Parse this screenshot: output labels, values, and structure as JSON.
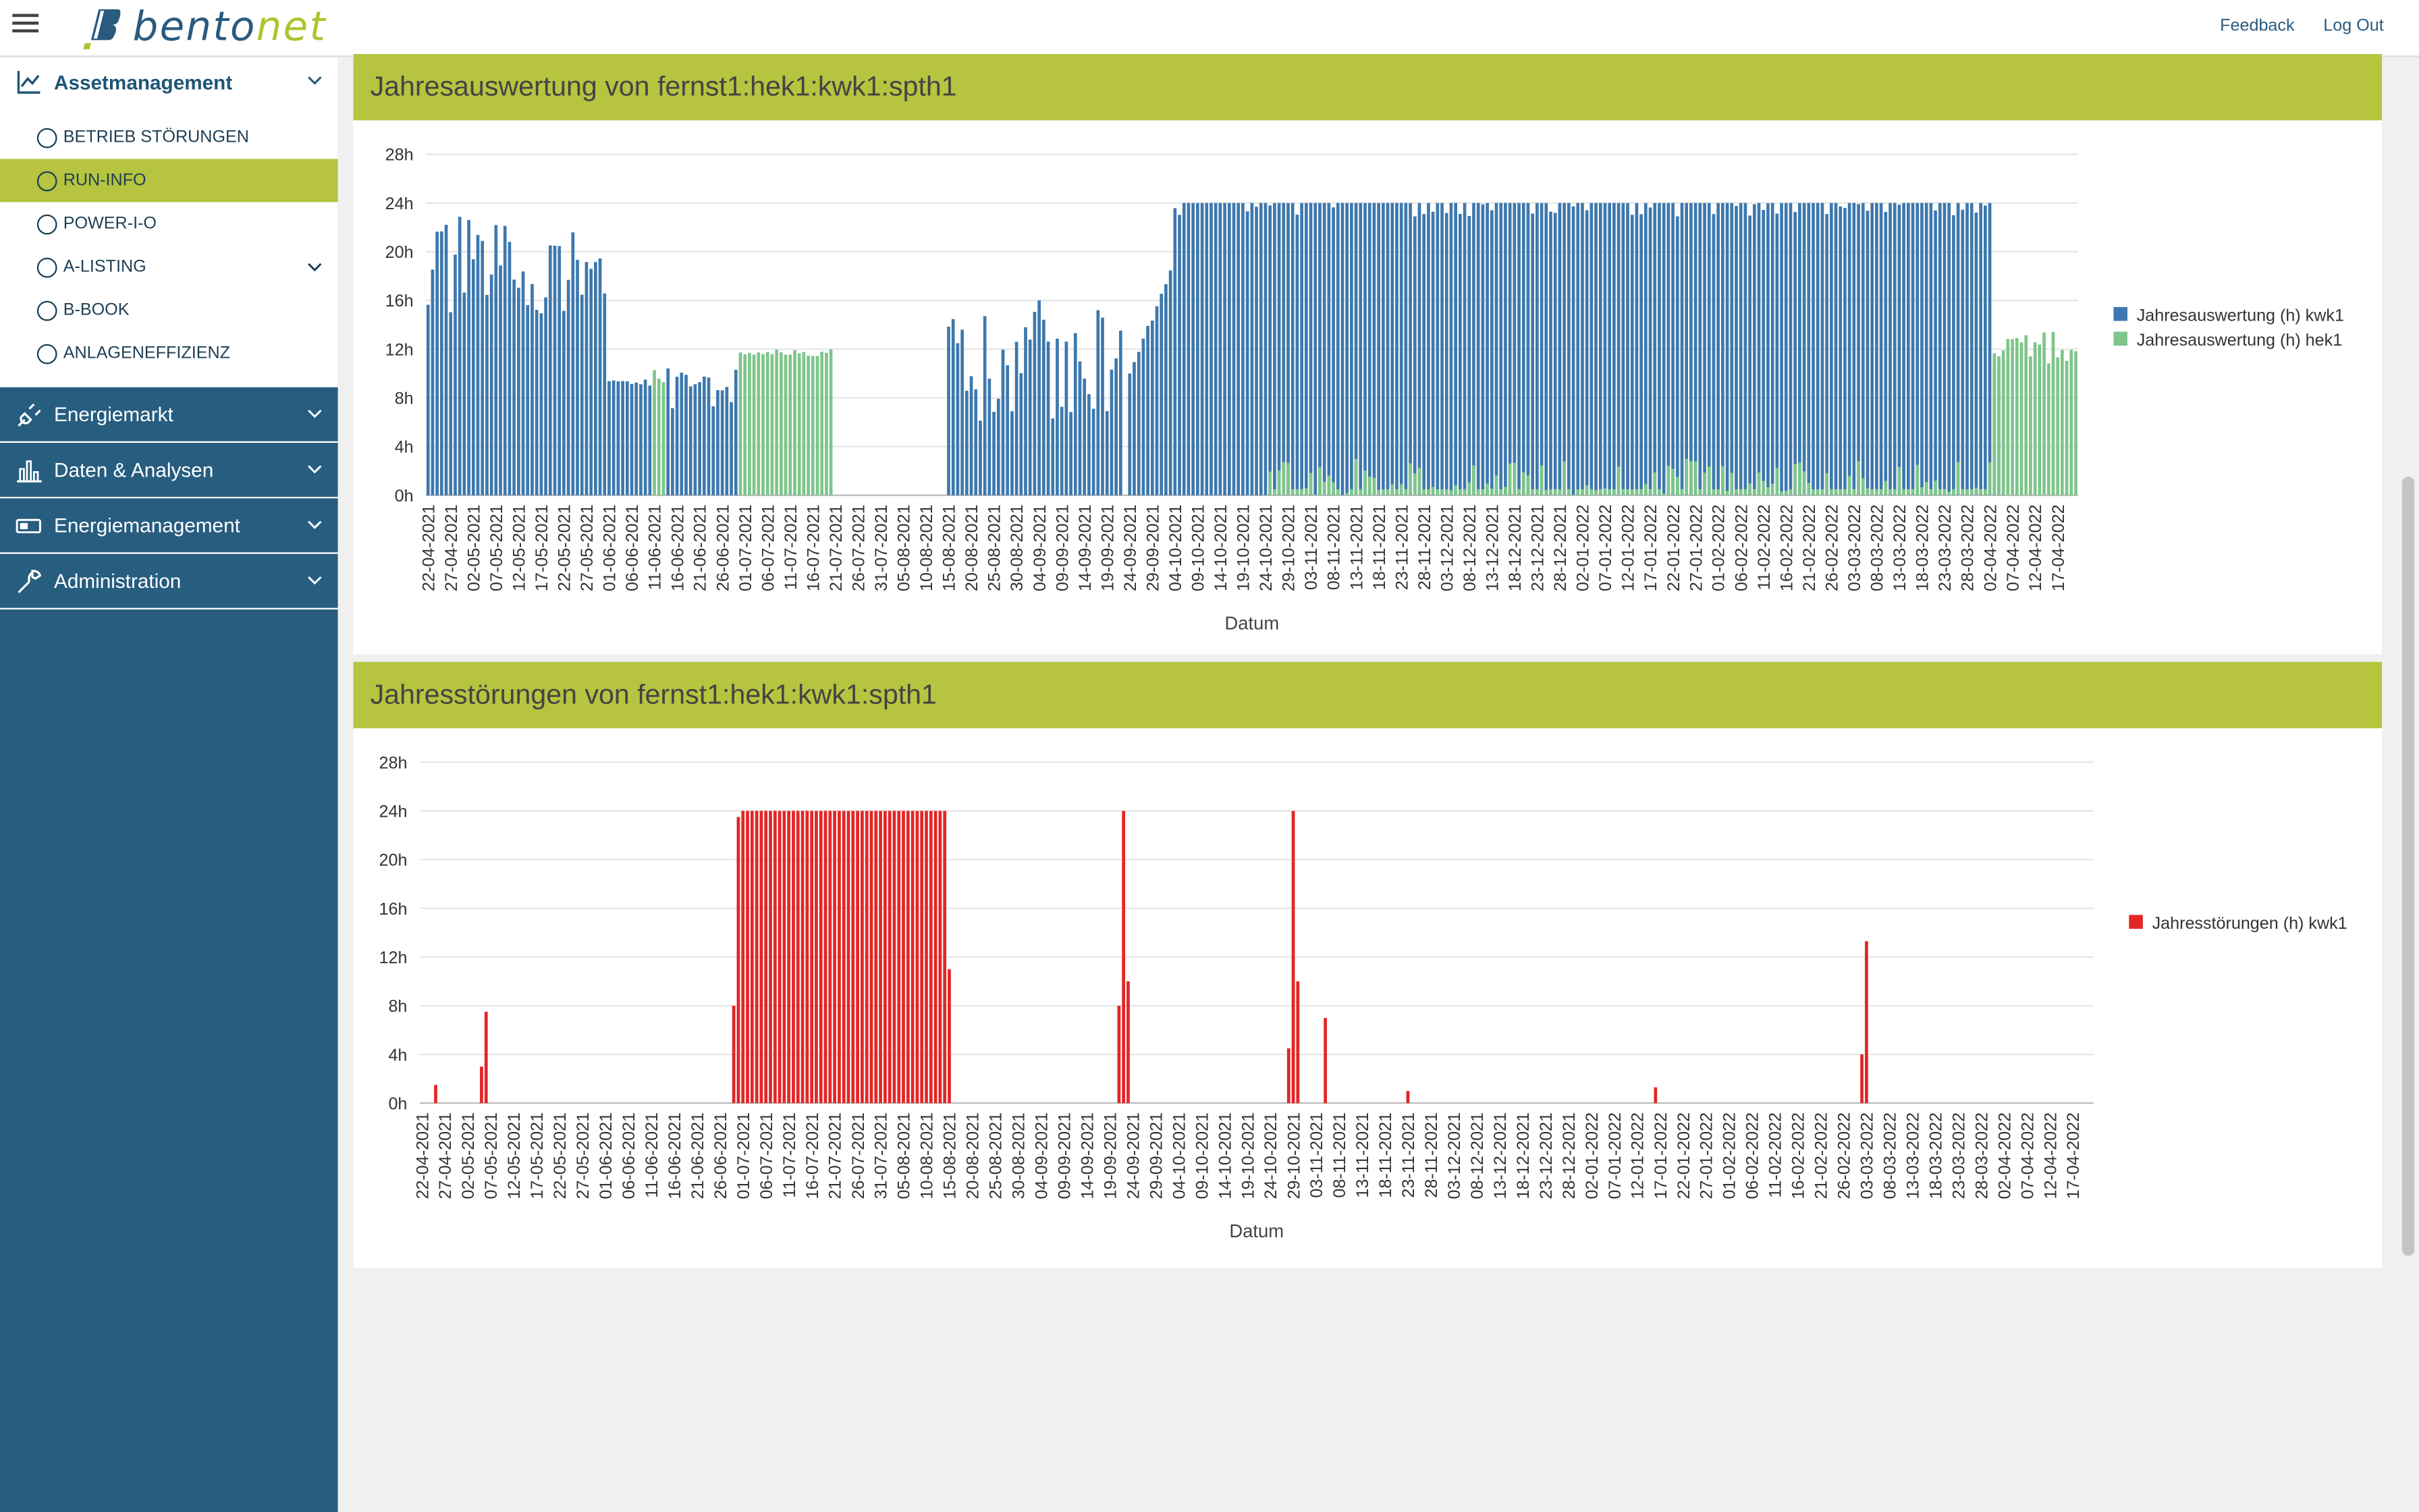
{
  "topbar": {
    "logo_text_1": "bento",
    "logo_text_2": "net",
    "feedback_label": "Feedback",
    "logout_label": "Log Out"
  },
  "sidebar": {
    "assetmanagement": {
      "label": "Assetmanagement",
      "items": [
        {
          "label": "BETRIEB STÖRUNGEN"
        },
        {
          "label": "RUN-INFO"
        },
        {
          "label": "POWER-I-O"
        },
        {
          "label": "A-LISTING"
        },
        {
          "label": "B-BOOK"
        },
        {
          "label": "ANLAGENEFFIZIENZ"
        }
      ]
    },
    "sections": [
      {
        "label": "Energiemarkt",
        "icon": "plug-icon"
      },
      {
        "label": "Daten & Analysen",
        "icon": "bar-chart-icon"
      },
      {
        "label": "Energiemanagement",
        "icon": "battery-icon"
      },
      {
        "label": "Administration",
        "icon": "wrench-icon"
      }
    ]
  },
  "colors": {
    "kwk1": "#3d78ae",
    "hek1": "#7ec58a",
    "stoerung": "#e32626",
    "accent": "#b6c43f",
    "sidebar": "#275d7f"
  },
  "chart_data": [
    {
      "type": "bar",
      "title": "Jahresauswertung von fernst1:hek1:kwk1:spth1",
      "xlabel": "Datum",
      "ylabel": "",
      "y_ticks": [
        "0h",
        "4h",
        "8h",
        "12h",
        "16h",
        "20h",
        "24h",
        "28h"
      ],
      "ylim": [
        0,
        28
      ],
      "x_start": "2021-04-22",
      "x_end": "2022-04-21",
      "x_ticks": [
        "22-04-2021",
        "27-04-2021",
        "02-05-2021",
        "07-05-2021",
        "12-05-2021",
        "17-05-2021",
        "22-05-2021",
        "27-05-2021",
        "01-06-2021",
        "06-06-2021",
        "11-06-2021",
        "16-06-2021",
        "21-06-2021",
        "26-06-2021",
        "01-07-2021",
        "06-07-2021",
        "11-07-2021",
        "16-07-2021",
        "21-07-2021",
        "26-07-2021",
        "31-07-2021",
        "05-08-2021",
        "10-08-2021",
        "15-08-2021",
        "20-08-2021",
        "25-08-2021",
        "30-08-2021",
        "04-09-2021",
        "09-09-2021",
        "14-09-2021",
        "19-09-2021",
        "24-09-2021",
        "29-09-2021",
        "04-10-2021",
        "09-10-2021",
        "14-10-2021",
        "19-10-2021",
        "24-10-2021",
        "29-10-2021",
        "03-11-2021",
        "08-11-2021",
        "13-11-2021",
        "18-11-2021",
        "23-11-2021",
        "28-11-2021",
        "03-12-2021",
        "08-12-2021",
        "13-12-2021",
        "18-12-2021",
        "23-12-2021",
        "28-12-2021",
        "02-01-2022",
        "07-01-2022",
        "12-01-2022",
        "17-01-2022",
        "22-01-2022",
        "27-01-2022",
        "01-02-2022",
        "06-02-2022",
        "11-02-2022",
        "16-02-2022",
        "21-02-2022",
        "26-02-2022",
        "03-03-2022",
        "08-03-2022",
        "13-03-2022",
        "18-03-2022",
        "23-03-2022",
        "28-03-2022",
        "02-04-2022",
        "07-04-2022",
        "12-04-2022",
        "17-04-2022"
      ],
      "legend_position": "right",
      "series": [
        {
          "name": "Jahresauswertung (h) kwk1",
          "color": "#3d78ae",
          "segments": [
            {
              "from": "2021-04-22",
              "to": "2021-05-31",
              "profile": "mixed",
              "min": 14,
              "max": 23
            },
            {
              "from": "2021-06-01",
              "to": "2021-06-10",
              "profile": "flat",
              "min": 8.5,
              "max": 9.5
            },
            {
              "from": "2021-06-14",
              "to": "2021-06-29",
              "profile": "mixed",
              "min": 7,
              "max": 10.5
            },
            {
              "from": "2021-08-15",
              "to": "2021-09-22",
              "profile": "mixed",
              "min": 6,
              "max": 16
            },
            {
              "from": "2021-09-24",
              "to": "2021-10-03",
              "profile": "rising",
              "min": 10,
              "max": 19
            },
            {
              "from": "2021-10-04",
              "to": "2022-04-02",
              "profile": "high",
              "min": 19,
              "max": 24
            },
            {
              "from": "2022-04-03",
              "to": "2022-04-05",
              "profile": "flat",
              "min": 8,
              "max": 12
            }
          ]
        },
        {
          "name": "Jahresauswertung (h) hek1",
          "color": "#7ec58a",
          "segments": [
            {
              "from": "2021-06-11",
              "to": "2021-06-13",
              "profile": "flat",
              "min": 8,
              "max": 11
            },
            {
              "from": "2021-06-30",
              "to": "2021-07-20",
              "profile": "flat",
              "min": 11,
              "max": 12
            },
            {
              "from": "2021-10-25",
              "to": "2022-04-02",
              "profile": "low",
              "min": 0,
              "max": 3
            },
            {
              "from": "2022-04-03",
              "to": "2022-04-21",
              "profile": "flat",
              "min": 9,
              "max": 13.5
            }
          ]
        }
      ]
    },
    {
      "type": "bar",
      "title": "Jahresstörungen von fernst1:hek1:kwk1:spth1",
      "xlabel": "Datum",
      "ylabel": "",
      "y_ticks": [
        "0h",
        "4h",
        "8h",
        "12h",
        "16h",
        "20h",
        "24h",
        "28h"
      ],
      "ylim": [
        0,
        28
      ],
      "x_start": "2021-04-22",
      "x_end": "2022-04-21",
      "x_ticks": [
        "22-04-2021",
        "27-04-2021",
        "02-05-2021",
        "07-05-2021",
        "12-05-2021",
        "17-05-2021",
        "22-05-2021",
        "27-05-2021",
        "01-06-2021",
        "06-06-2021",
        "11-06-2021",
        "16-06-2021",
        "21-06-2021",
        "26-06-2021",
        "01-07-2021",
        "06-07-2021",
        "11-07-2021",
        "16-07-2021",
        "21-07-2021",
        "26-07-2021",
        "31-07-2021",
        "05-08-2021",
        "10-08-2021",
        "15-08-2021",
        "20-08-2021",
        "25-08-2021",
        "30-08-2021",
        "04-09-2021",
        "09-09-2021",
        "14-09-2021",
        "19-09-2021",
        "24-09-2021",
        "29-09-2021",
        "04-10-2021",
        "09-10-2021",
        "14-10-2021",
        "19-10-2021",
        "24-10-2021",
        "29-10-2021",
        "03-11-2021",
        "08-11-2021",
        "13-11-2021",
        "18-11-2021",
        "23-11-2021",
        "28-11-2021",
        "03-12-2021",
        "08-12-2021",
        "13-12-2021",
        "18-12-2021",
        "23-12-2021",
        "28-12-2021",
        "02-01-2022",
        "07-01-2022",
        "12-01-2022",
        "17-01-2022",
        "22-01-2022",
        "27-01-2022",
        "01-02-2022",
        "06-02-2022",
        "11-02-2022",
        "16-02-2022",
        "21-02-2022",
        "26-02-2022",
        "03-03-2022",
        "08-03-2022",
        "13-03-2022",
        "18-03-2022",
        "23-03-2022",
        "28-03-2022",
        "02-04-2022",
        "07-04-2022",
        "12-04-2022",
        "17-04-2022"
      ],
      "legend_position": "right",
      "series": [
        {
          "name": "Jahresstörungen (h) kwk1",
          "color": "#e32626",
          "points": [
            {
              "date": "2021-04-25",
              "value": 1.5
            },
            {
              "date": "2021-05-05",
              "value": 3
            },
            {
              "date": "2021-05-06",
              "value": 7.5
            },
            {
              "date": "2021-06-29",
              "value": 8
            },
            {
              "date": "2021-06-30",
              "value": 23.5
            },
            {
              "date": "2021-07-01",
              "to": "2021-08-14",
              "value": 24
            },
            {
              "date": "2021-08-15",
              "value": 11
            },
            {
              "date": "2021-09-21",
              "value": 8
            },
            {
              "date": "2021-09-22",
              "value": 24
            },
            {
              "date": "2021-09-23",
              "value": 10
            },
            {
              "date": "2021-10-28",
              "value": 4.5
            },
            {
              "date": "2021-10-29",
              "value": 24
            },
            {
              "date": "2021-10-30",
              "value": 10
            },
            {
              "date": "2021-11-05",
              "value": 7
            },
            {
              "date": "2021-11-23",
              "value": 1
            },
            {
              "date": "2022-01-16",
              "value": 1.3
            },
            {
              "date": "2022-03-02",
              "value": 4
            },
            {
              "date": "2022-03-03",
              "value": 13.3
            }
          ]
        }
      ]
    }
  ]
}
